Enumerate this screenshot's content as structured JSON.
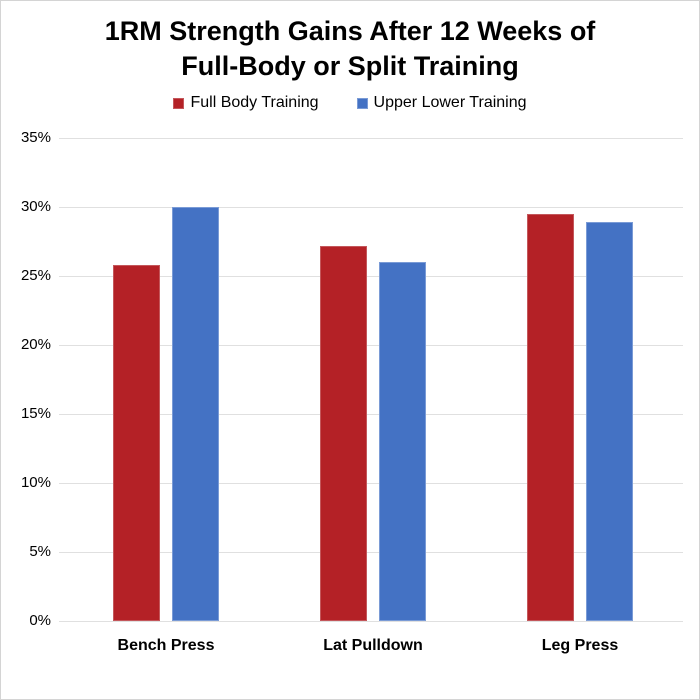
{
  "chart": {
    "title_lines": [
      "1RM Strength Gains After 12 Weeks of",
      "Full-Body or Split Training"
    ]
  },
  "chart_data": {
    "type": "bar",
    "title": "1RM Strength Gains After 12 Weeks of Full-Body or Split Training",
    "categories": [
      "Bench Press",
      "Lat Pulldown",
      "Leg Press"
    ],
    "series": [
      {
        "name": "Full Body Training",
        "color": "#b42126",
        "border_color": "#c4575b",
        "values": [
          25.8,
          27.2,
          29.5
        ]
      },
      {
        "name": "Upper Lower Training",
        "color": "#4472c4",
        "border_color": "#7a9bd6",
        "values": [
          30.0,
          26.0,
          28.9
        ]
      }
    ],
    "xlabel": "",
    "ylabel": "",
    "ylim": [
      0,
      35
    ],
    "ytick_step": 5,
    "ytick_suffix": "%",
    "grid": true,
    "legend_position": "top",
    "colors": {
      "grid": "#e0e0e0",
      "text": "#000000",
      "background": "#ffffff"
    }
  }
}
